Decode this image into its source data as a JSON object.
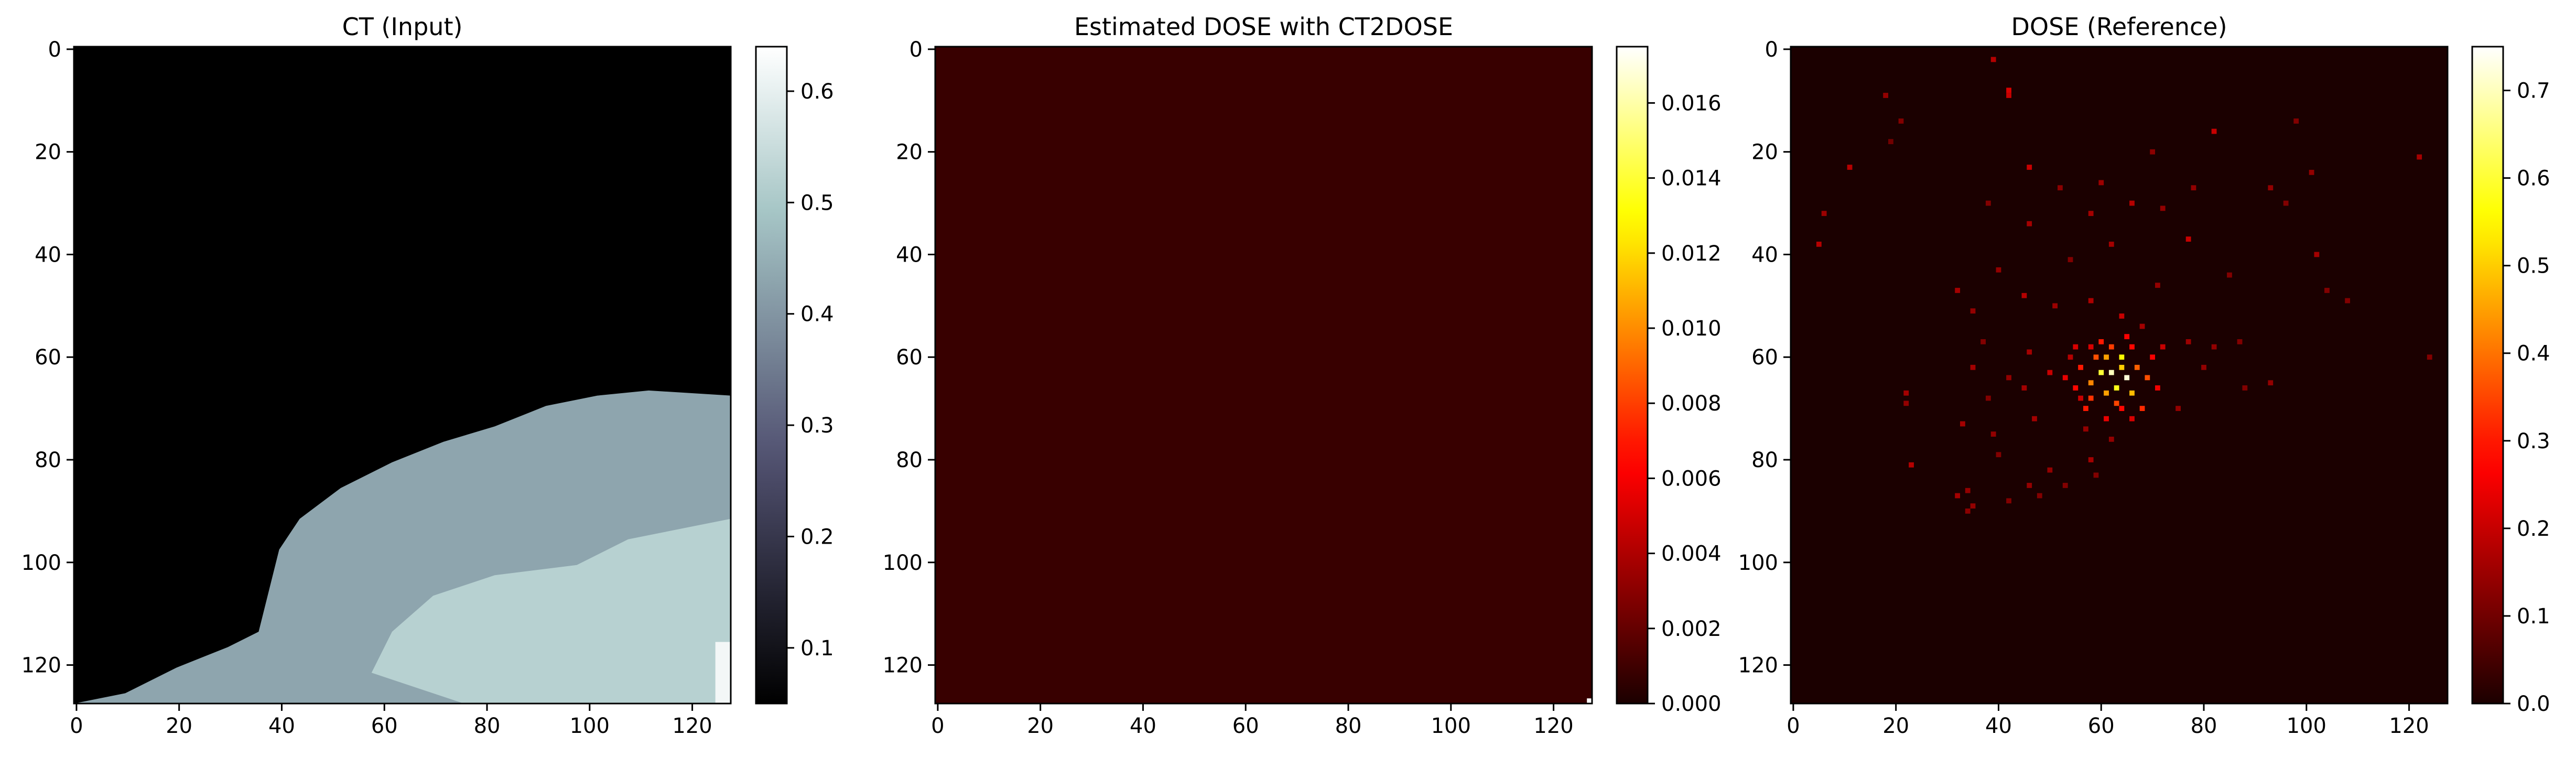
{
  "chart_data": [
    {
      "type": "heatmap",
      "title": "CT (Input)",
      "xlabel": "",
      "ylabel": "",
      "xlim": [
        0,
        128
      ],
      "ylim": [
        128,
        0
      ],
      "x_ticks": [
        "0",
        "20",
        "40",
        "60",
        "80",
        "100",
        "120"
      ],
      "y_ticks": [
        "0",
        "20",
        "40",
        "60",
        "80",
        "100",
        "120"
      ],
      "colormap": "bone",
      "colorbar": {
        "min": 0.05,
        "max": 0.64,
        "ticks": [
          "0.1",
          "0.2",
          "0.3",
          "0.4",
          "0.5",
          "0.6"
        ],
        "tick_values": [
          0.1,
          0.2,
          0.3,
          0.4,
          0.5,
          0.6
        ]
      },
      "content": {
        "background_value": 0.05,
        "tissue_value": 0.43,
        "bright_region_value": 0.52,
        "hot_corner_value": 0.62,
        "tissue_boundary": [
          [
            0,
            128
          ],
          [
            10,
            126
          ],
          [
            20,
            121
          ],
          [
            30,
            117
          ],
          [
            36,
            114
          ],
          [
            38,
            106
          ],
          [
            40,
            98
          ],
          [
            44,
            92
          ],
          [
            52,
            86
          ],
          [
            62,
            81
          ],
          [
            72,
            77
          ],
          [
            82,
            74
          ],
          [
            92,
            70
          ],
          [
            102,
            68
          ],
          [
            112,
            67
          ],
          [
            128,
            68
          ]
        ],
        "bright_region": [
          [
            58,
            122
          ],
          [
            62,
            114
          ],
          [
            70,
            107
          ],
          [
            82,
            103
          ],
          [
            98,
            101
          ],
          [
            108,
            96
          ],
          [
            118,
            94
          ],
          [
            128,
            92
          ],
          [
            128,
            128
          ],
          [
            76,
            128
          ],
          [
            64,
            124
          ]
        ]
      }
    },
    {
      "type": "heatmap",
      "title": "Estimated DOSE with CT2DOSE",
      "xlabel": "",
      "ylabel": "",
      "xlim": [
        0,
        128
      ],
      "ylim": [
        128,
        0
      ],
      "x_ticks": [
        "0",
        "20",
        "40",
        "60",
        "80",
        "100",
        "120"
      ],
      "y_ticks": [
        "0",
        "20",
        "40",
        "60",
        "80",
        "100",
        "120"
      ],
      "colormap": "hot",
      "colorbar": {
        "min": 0.0,
        "max": 0.0175,
        "ticks": [
          "0.000",
          "0.002",
          "0.004",
          "0.006",
          "0.008",
          "0.010",
          "0.012",
          "0.014",
          "0.016"
        ],
        "tick_values": [
          0.0,
          0.002,
          0.004,
          0.006,
          0.008,
          0.01,
          0.012,
          0.014,
          0.016
        ]
      },
      "content": {
        "background_value": 0.0008,
        "hot_pixels": [
          [
            127,
            127,
            0.0175
          ]
        ]
      }
    },
    {
      "type": "heatmap",
      "title": "DOSE (Reference)",
      "xlabel": "",
      "ylabel": "",
      "xlim": [
        0,
        128
      ],
      "ylim": [
        128,
        0
      ],
      "x_ticks": [
        "0",
        "20",
        "40",
        "60",
        "80",
        "100",
        "120"
      ],
      "y_ticks": [
        "0",
        "20",
        "40",
        "60",
        "80",
        "100",
        "120"
      ],
      "colormap": "hot",
      "colorbar": {
        "min": 0.0,
        "max": 0.75,
        "ticks": [
          "0.0",
          "0.1",
          "0.2",
          "0.3",
          "0.4",
          "0.5",
          "0.6",
          "0.7"
        ],
        "tick_values": [
          0.0,
          0.1,
          0.2,
          0.3,
          0.4,
          0.5,
          0.6,
          0.7
        ]
      },
      "content": {
        "background_value": 0.0,
        "hotspot_center": [
          63,
          64
        ],
        "hotspot_peak": 0.72,
        "scattered_points": [
          [
            39,
            2,
            0.18
          ],
          [
            42,
            8,
            0.22
          ],
          [
            42,
            9,
            0.2
          ],
          [
            18,
            9,
            0.14
          ],
          [
            21,
            14,
            0.12
          ],
          [
            82,
            16,
            0.2
          ],
          [
            98,
            14,
            0.12
          ],
          [
            19,
            18,
            0.1
          ],
          [
            70,
            20,
            0.13
          ],
          [
            11,
            23,
            0.18
          ],
          [
            46,
            23,
            0.2
          ],
          [
            101,
            24,
            0.14
          ],
          [
            122,
            21,
            0.16
          ],
          [
            60,
            26,
            0.15
          ],
          [
            52,
            27,
            0.13
          ],
          [
            78,
            27,
            0.14
          ],
          [
            6,
            32,
            0.15
          ],
          [
            93,
            27,
            0.14
          ],
          [
            66,
            30,
            0.18
          ],
          [
            38,
            30,
            0.12
          ],
          [
            58,
            32,
            0.16
          ],
          [
            72,
            31,
            0.14
          ],
          [
            96,
            30,
            0.12
          ],
          [
            46,
            34,
            0.16
          ],
          [
            77,
            37,
            0.2
          ],
          [
            5,
            38,
            0.18
          ],
          [
            62,
            38,
            0.16
          ],
          [
            54,
            41,
            0.12
          ],
          [
            102,
            40,
            0.16
          ],
          [
            40,
            43,
            0.14
          ],
          [
            85,
            44,
            0.12
          ],
          [
            71,
            46,
            0.14
          ],
          [
            32,
            47,
            0.16
          ],
          [
            45,
            48,
            0.18
          ],
          [
            58,
            49,
            0.17
          ],
          [
            51,
            50,
            0.15
          ],
          [
            104,
            47,
            0.12
          ],
          [
            108,
            49,
            0.12
          ],
          [
            35,
            51,
            0.14
          ],
          [
            64,
            52,
            0.2
          ],
          [
            68,
            54,
            0.16
          ],
          [
            72,
            58,
            0.2
          ],
          [
            58,
            58,
            0.22
          ],
          [
            54,
            60,
            0.18
          ],
          [
            46,
            59,
            0.16
          ],
          [
            77,
            57,
            0.15
          ],
          [
            82,
            58,
            0.14
          ],
          [
            37,
            57,
            0.12
          ],
          [
            87,
            57,
            0.12
          ],
          [
            124,
            60,
            0.12
          ],
          [
            50,
            63,
            0.2
          ],
          [
            42,
            64,
            0.14
          ],
          [
            35,
            62,
            0.16
          ],
          [
            80,
            62,
            0.14
          ],
          [
            88,
            66,
            0.12
          ],
          [
            93,
            65,
            0.14
          ],
          [
            22,
            67,
            0.16
          ],
          [
            22,
            69,
            0.14
          ],
          [
            45,
            66,
            0.16
          ],
          [
            56,
            68,
            0.2
          ],
          [
            38,
            68,
            0.12
          ],
          [
            75,
            70,
            0.14
          ],
          [
            47,
            72,
            0.16
          ],
          [
            33,
            73,
            0.16
          ],
          [
            57,
            74,
            0.14
          ],
          [
            39,
            75,
            0.14
          ],
          [
            62,
            76,
            0.14
          ],
          [
            40,
            79,
            0.12
          ],
          [
            58,
            80,
            0.16
          ],
          [
            23,
            81,
            0.18
          ],
          [
            50,
            82,
            0.14
          ],
          [
            53,
            85,
            0.12
          ],
          [
            46,
            85,
            0.14
          ],
          [
            34,
            86,
            0.14
          ],
          [
            42,
            88,
            0.12
          ],
          [
            32,
            87,
            0.16
          ],
          [
            35,
            89,
            0.14
          ],
          [
            34,
            90,
            0.13
          ],
          [
            48,
            87,
            0.12
          ],
          [
            59,
            83,
            0.12
          ],
          [
            61,
            60,
            0.45
          ],
          [
            64,
            60,
            0.55
          ],
          [
            60,
            63,
            0.6
          ],
          [
            62,
            63,
            0.7
          ],
          [
            64,
            62,
            0.5
          ],
          [
            65,
            64,
            0.72
          ],
          [
            63,
            66,
            0.58
          ],
          [
            61,
            67,
            0.45
          ],
          [
            66,
            67,
            0.48
          ],
          [
            58,
            65,
            0.42
          ],
          [
            67,
            62,
            0.38
          ],
          [
            56,
            62,
            0.3
          ],
          [
            60,
            57,
            0.3
          ],
          [
            66,
            58,
            0.28
          ],
          [
            69,
            64,
            0.36
          ],
          [
            63,
            69,
            0.35
          ],
          [
            57,
            70,
            0.3
          ],
          [
            68,
            70,
            0.32
          ],
          [
            55,
            66,
            0.28
          ],
          [
            70,
            60,
            0.26
          ],
          [
            59,
            60,
            0.36
          ],
          [
            62,
            58,
            0.34
          ],
          [
            65,
            56,
            0.26
          ],
          [
            58,
            68,
            0.33
          ],
          [
            64,
            70,
            0.28
          ],
          [
            53,
            64,
            0.24
          ],
          [
            71,
            66,
            0.25
          ],
          [
            66,
            72,
            0.22
          ],
          [
            61,
            72,
            0.24
          ],
          [
            55,
            58,
            0.22
          ]
        ]
      }
    }
  ]
}
